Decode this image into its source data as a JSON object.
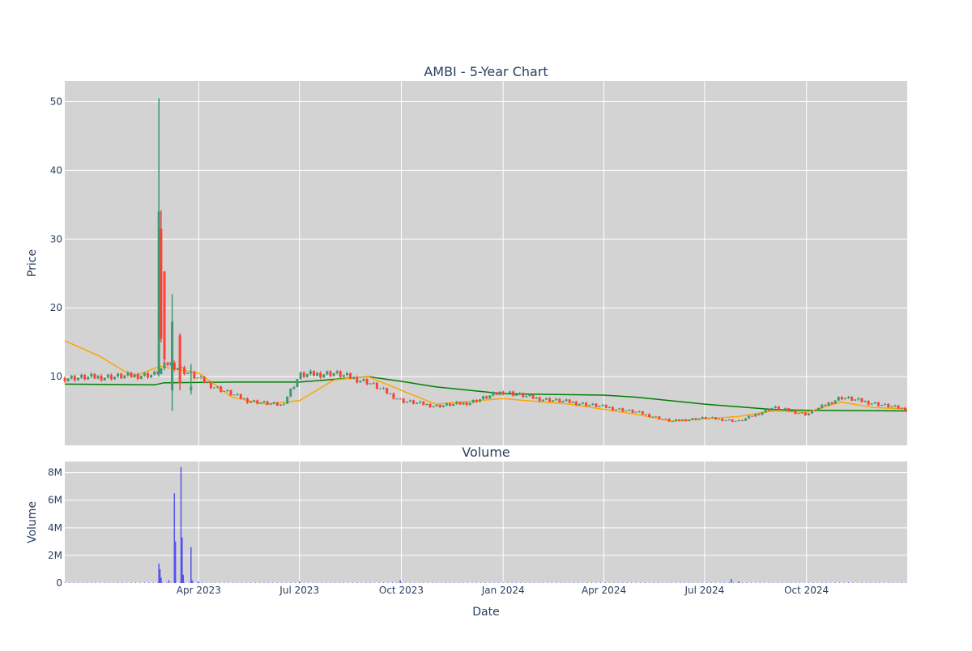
{
  "chart_data": [
    {
      "type": "candlestick",
      "title": "AMBI - 5-Year Chart",
      "ylabel": "Price",
      "xlim": [
        "2022-12-01",
        "2024-12-31"
      ],
      "ylim": [
        0,
        53
      ],
      "yticks": [
        10,
        20,
        30,
        40,
        50
      ],
      "grid": true,
      "colors": {
        "increasing": "#3d9970",
        "decreasing": "#ff4136",
        "ma_fast": "#ffa500",
        "ma_slow": "#008000",
        "plot_bg": "#d3d3d3"
      },
      "ohlc_samples": [
        {
          "date": "2023-02-24",
          "open": 10.5,
          "high": 50.5,
          "low": 10.0,
          "close": 34.0
        },
        {
          "date": "2023-02-26",
          "open": 31.5,
          "high": 34.2,
          "low": 15.0,
          "close": 15.5
        },
        {
          "date": "2023-03-01",
          "open": 25.3,
          "high": 25.3,
          "low": 12.0,
          "close": 12.5
        },
        {
          "date": "2023-03-08",
          "open": 8.0,
          "high": 22.0,
          "low": 5.0,
          "close": 18.0
        },
        {
          "date": "2023-03-15",
          "open": 16.0,
          "high": 16.3,
          "low": 8.0,
          "close": 9.0
        },
        {
          "date": "2023-03-25",
          "open": 8.0,
          "high": 11.8,
          "low": 7.4,
          "close": 8.5
        }
      ],
      "close_series": {
        "dates": [
          "2022-12-01",
          "2023-01-15",
          "2023-02-20",
          "2023-03-05",
          "2023-04-15",
          "2023-05-15",
          "2023-06-15",
          "2023-07-01",
          "2023-08-01",
          "2023-09-01",
          "2023-10-01",
          "2023-11-01",
          "2023-12-01",
          "2024-01-01",
          "2024-02-01",
          "2024-03-01",
          "2024-04-01",
          "2024-05-01",
          "2024-06-01",
          "2024-07-01",
          "2024-08-01",
          "2024-09-01",
          "2024-10-01",
          "2024-11-01",
          "2024-12-31"
        ],
        "values": [
          9.8,
          10.0,
          10.3,
          12.0,
          8.5,
          6.5,
          5.8,
          10.2,
          10.5,
          9.2,
          6.5,
          5.7,
          6.2,
          7.8,
          6.8,
          6.3,
          5.6,
          4.8,
          3.5,
          4.0,
          3.5,
          5.5,
          4.5,
          7.0,
          5.2
        ]
      },
      "ma_fast_series": {
        "dates": [
          "2022-12-01",
          "2023-01-01",
          "2023-02-01",
          "2023-02-25",
          "2023-03-15",
          "2023-04-01",
          "2023-05-01",
          "2023-06-01",
          "2023-07-01",
          "2023-08-01",
          "2023-09-01",
          "2023-10-01",
          "2023-11-01",
          "2024-01-01",
          "2024-03-01",
          "2024-05-01",
          "2024-06-01",
          "2024-08-01",
          "2024-09-01",
          "2024-10-01",
          "2024-11-01",
          "2024-12-01",
          "2024-12-31"
        ],
        "values": [
          15.2,
          13.0,
          10.0,
          11.5,
          11.0,
          10.5,
          7.0,
          6.0,
          6.5,
          9.5,
          10.0,
          8.0,
          6.0,
          6.8,
          6.0,
          4.5,
          3.5,
          4.2,
          5.0,
          4.8,
          6.3,
          5.5,
          5.3
        ]
      },
      "ma_slow_series": {
        "dates": [
          "2022-12-01",
          "2023-02-20",
          "2023-03-01",
          "2023-05-01",
          "2023-07-01",
          "2023-09-01",
          "2023-10-01",
          "2023-11-01",
          "2024-01-01",
          "2024-04-01",
          "2024-05-01",
          "2024-07-01",
          "2024-09-01",
          "2024-10-01",
          "2024-12-31"
        ],
        "values": [
          8.9,
          8.8,
          9.1,
          9.2,
          9.2,
          10.0,
          9.3,
          8.5,
          7.5,
          7.3,
          7.0,
          6.0,
          5.2,
          5.1,
          5.0
        ]
      }
    },
    {
      "type": "bar",
      "title": "Volume",
      "xlabel": "Date",
      "ylabel": "Volume",
      "ylim": [
        0,
        8800000
      ],
      "yticks": [
        0,
        2000000,
        4000000,
        6000000,
        8000000
      ],
      "ytick_labels": [
        "0",
        "2M",
        "4M",
        "6M",
        "8M"
      ],
      "xtick_labels": [
        "Apr 2023",
        "Jul 2023",
        "Oct 2023",
        "Jan 2024",
        "Apr 2024",
        "Jul 2024",
        "Oct 2024"
      ],
      "xtick_dates": [
        "2023-04-01",
        "2023-07-01",
        "2023-10-01",
        "2024-01-01",
        "2024-04-01",
        "2024-07-01",
        "2024-10-01"
      ],
      "grid": true,
      "bar_color": "#0000ff",
      "points": [
        {
          "date": "2023-02-24",
          "value": 1400000
        },
        {
          "date": "2023-02-25",
          "value": 1000000
        },
        {
          "date": "2023-02-26",
          "value": 400000
        },
        {
          "date": "2023-03-05",
          "value": 200000
        },
        {
          "date": "2023-03-10",
          "value": 6500000
        },
        {
          "date": "2023-03-11",
          "value": 3000000
        },
        {
          "date": "2023-03-16",
          "value": 8400000
        },
        {
          "date": "2023-03-17",
          "value": 3300000
        },
        {
          "date": "2023-03-18",
          "value": 600000
        },
        {
          "date": "2023-03-25",
          "value": 2600000
        },
        {
          "date": "2023-03-26",
          "value": 200000
        },
        {
          "date": "2023-04-01",
          "value": 100000
        },
        {
          "date": "2023-07-01",
          "value": 100000
        },
        {
          "date": "2023-09-30",
          "value": 200000
        },
        {
          "date": "2024-07-25",
          "value": 300000
        },
        {
          "date": "2024-08-01",
          "value": 100000
        }
      ]
    }
  ]
}
